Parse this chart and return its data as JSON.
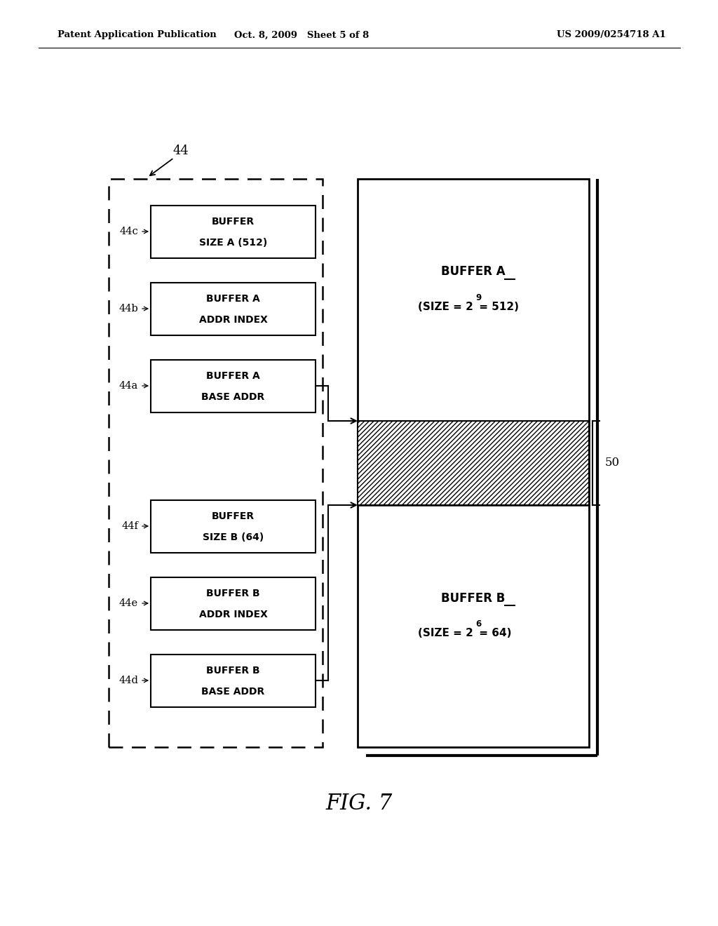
{
  "header_left": "Patent Application Publication",
  "header_center": "Oct. 8, 2009   Sheet 5 of 8",
  "header_right": "US 2009/0254718 A1",
  "fig_label": "FIG. 7",
  "label_44": "44",
  "label_44a": "44a",
  "label_44b": "44b",
  "label_44c": "44c",
  "label_44d": "44d",
  "label_44e": "44e",
  "label_44f": "44f",
  "label_50": "50",
  "box_44c_text": [
    "BUFFER",
    "SIZE A (512)"
  ],
  "box_44b_text": [
    "BUFFER A",
    "ADDR INDEX"
  ],
  "box_44a_text": [
    "BUFFER A",
    "BASE ADDR"
  ],
  "box_44f_text": [
    "BUFFER",
    "SIZE B (64)"
  ],
  "box_44e_text": [
    "BUFFER B",
    "ADDR INDEX"
  ],
  "box_44d_text": [
    "BUFFER B",
    "BASE ADDR"
  ],
  "bg_color": "#ffffff",
  "fg_color": "#000000"
}
